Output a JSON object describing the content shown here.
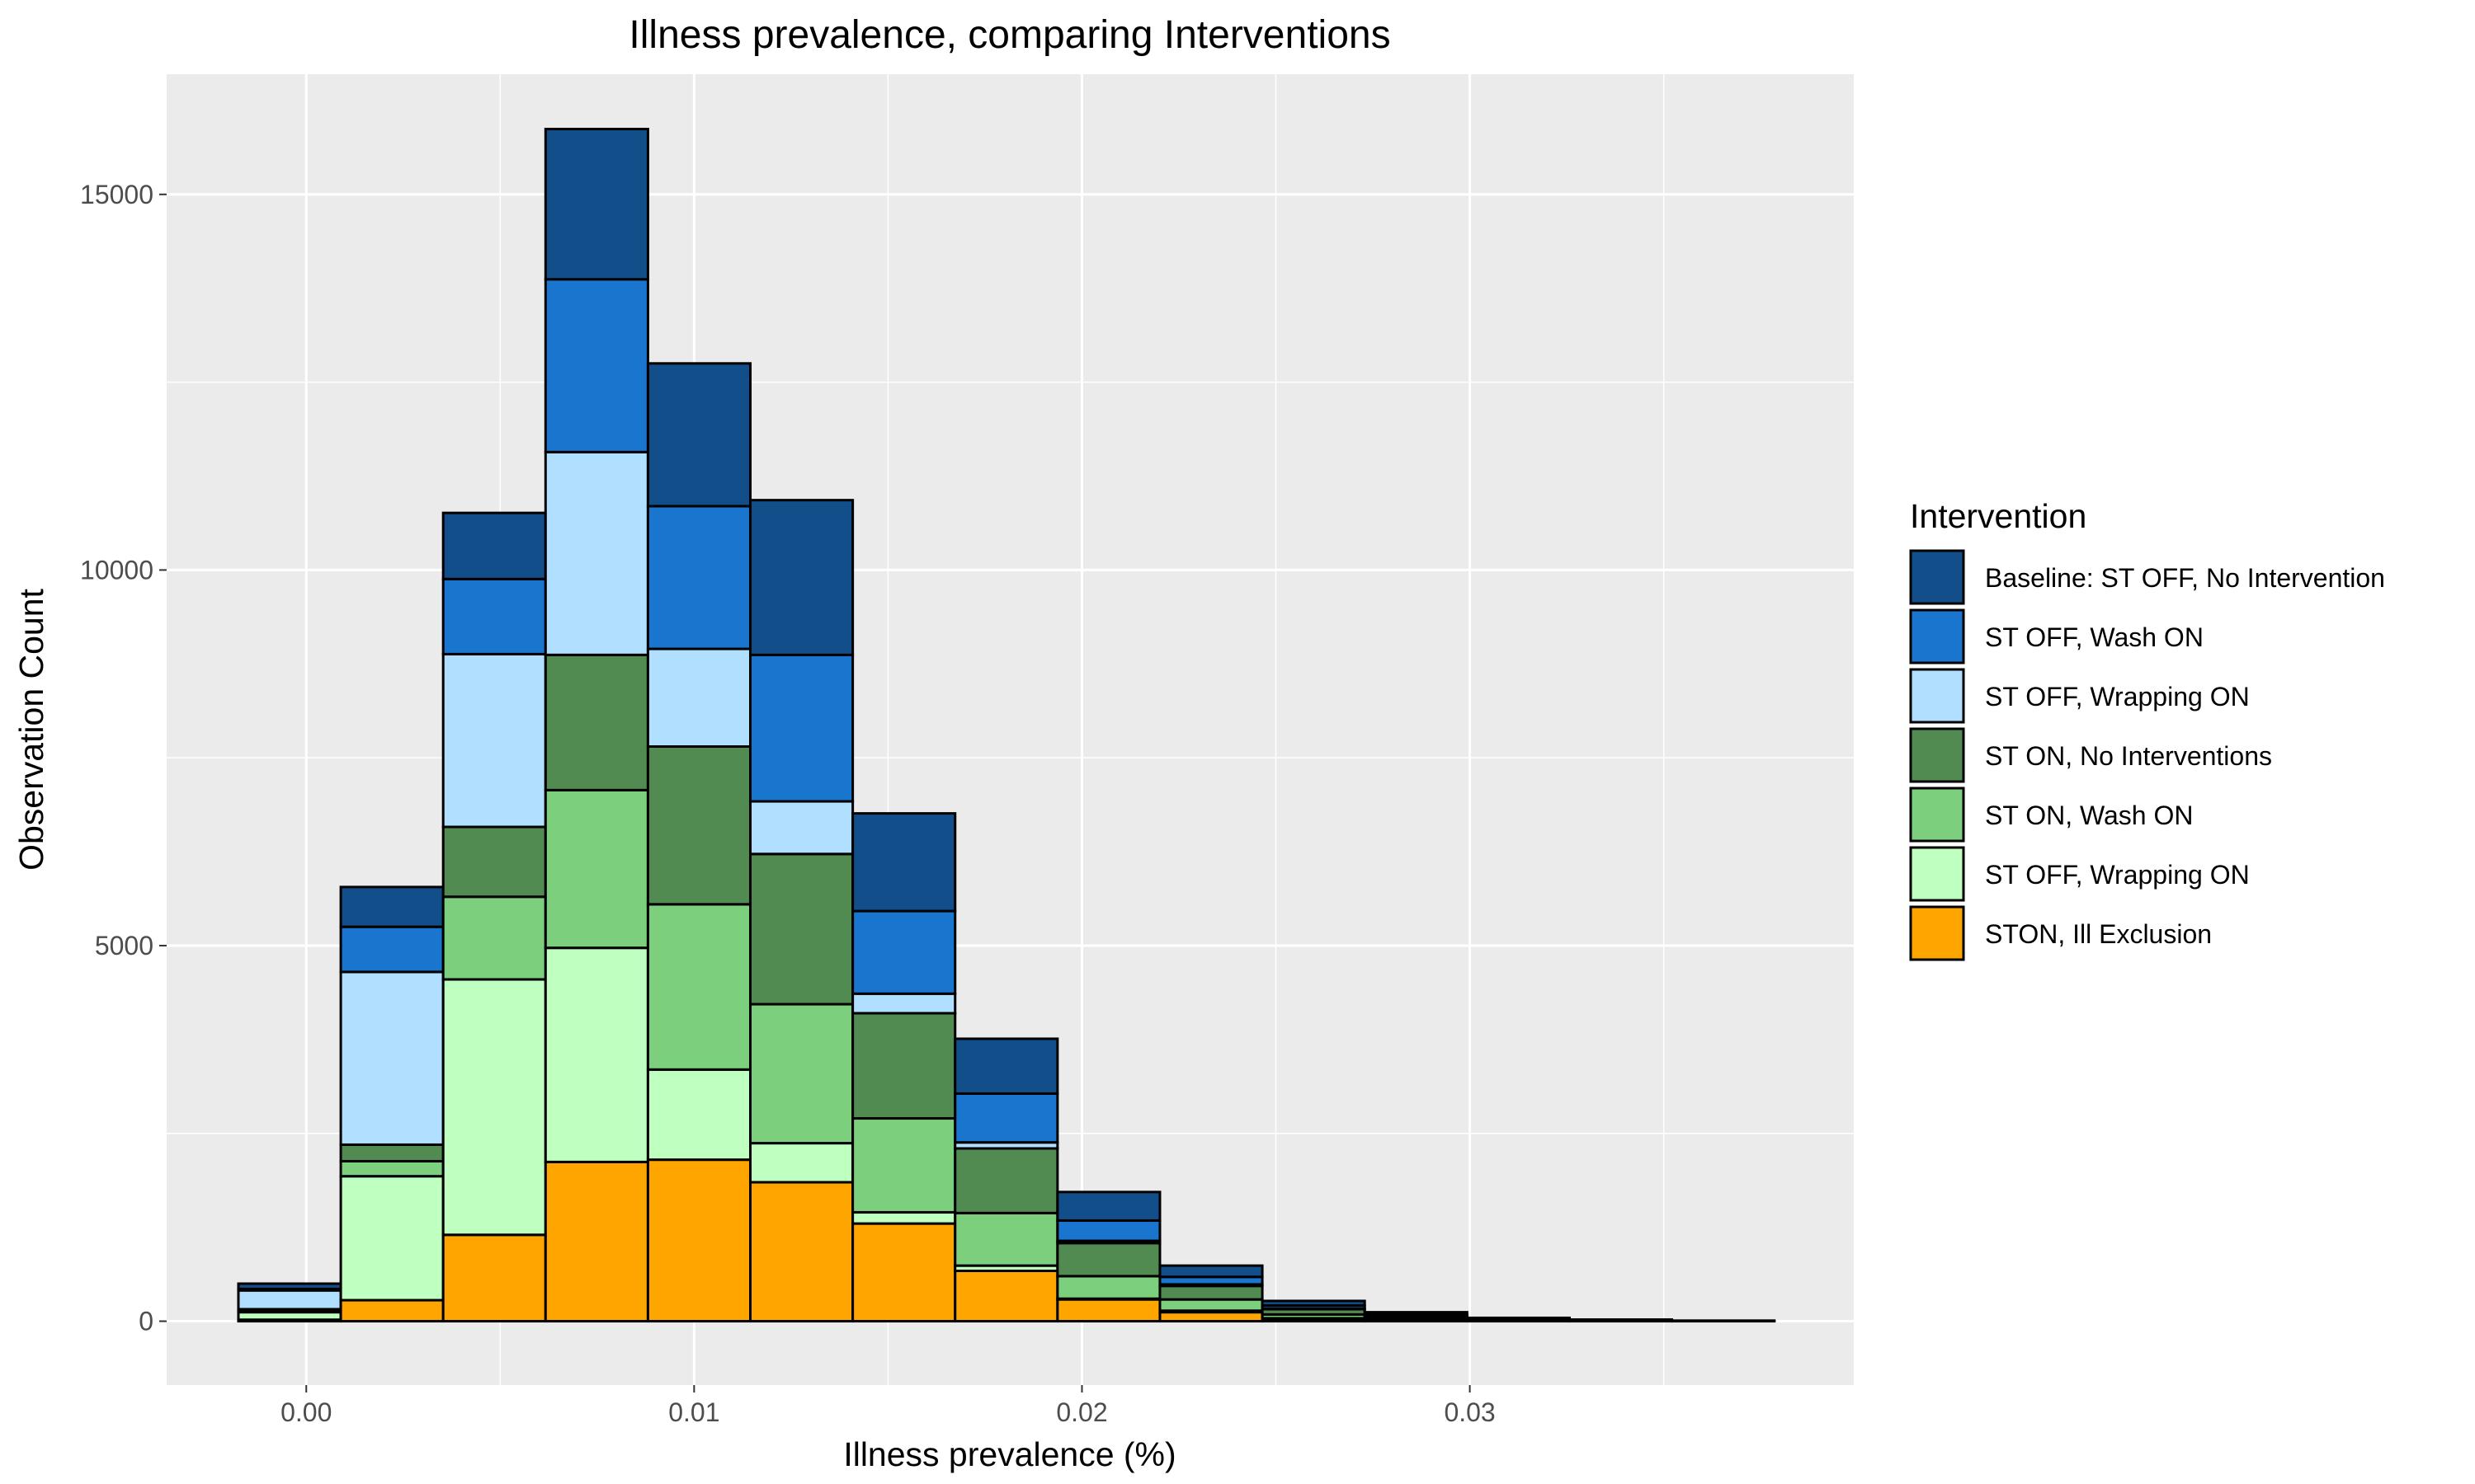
{
  "chart_data": {
    "type": "bar",
    "subtype": "stacked-histogram",
    "title": "Illness prevalence, comparing Interventions",
    "xlabel": "Illness prevalence (%)",
    "ylabel": "Observation Count",
    "xlim": [
      -0.0036,
      0.0399
    ],
    "ylim": [
      -850,
      16600
    ],
    "xticks": [
      0.0,
      0.01,
      0.02,
      0.03
    ],
    "xtick_labels": [
      "0.00",
      "0.01",
      "0.02",
      "0.03"
    ],
    "yticks": [
      0,
      5000,
      10000,
      15000
    ],
    "ytick_labels": [
      "0",
      "5000",
      "10000",
      "15000"
    ],
    "grid": true,
    "legend_title": "Intervention",
    "legend_position": "right",
    "bins": [
      [
        -0.00175,
        0.00089
      ],
      [
        0.00089,
        0.00353
      ],
      [
        0.00353,
        0.00617
      ],
      [
        0.00617,
        0.00881
      ],
      [
        0.00881,
        0.01145
      ],
      [
        0.01145,
        0.01409
      ],
      [
        0.01409,
        0.01673
      ],
      [
        0.01673,
        0.01937
      ],
      [
        0.01937,
        0.02201
      ],
      [
        0.02201,
        0.02465
      ],
      [
        0.02465,
        0.02729
      ],
      [
        0.02729,
        0.02993
      ],
      [
        0.02993,
        0.03257
      ],
      [
        0.03257,
        0.03521
      ],
      [
        0.03521,
        0.03785
      ]
    ],
    "series": [
      {
        "name": "Baseline: ST OFF, No Intervention",
        "color": "#124E8A",
        "values": [
          70,
          530,
          880,
          2000,
          1900,
          2060,
          1300,
          730,
          380,
          150,
          60,
          30,
          10,
          5,
          2
        ]
      },
      {
        "name": "ST OFF, Wash ON",
        "color": "#1A75CF",
        "values": [
          20,
          600,
          1000,
          2300,
          1900,
          1950,
          1100,
          650,
          270,
          100,
          40,
          20,
          8,
          4,
          2
        ]
      },
      {
        "name": "ST OFF, Wrapping ON",
        "color": "#B1DFFF",
        "values": [
          250,
          2300,
          2300,
          2700,
          1300,
          700,
          260,
          80,
          30,
          20,
          10,
          5,
          2,
          1,
          0
        ]
      },
      {
        "name": "ST ON, No Interventions",
        "color": "#518B52",
        "values": [
          20,
          220,
          930,
          1800,
          2100,
          2000,
          1400,
          860,
          440,
          180,
          70,
          25,
          10,
          5,
          2
        ]
      },
      {
        "name": "ST ON, Wash ON",
        "color": "#7CCF7C",
        "values": [
          20,
          200,
          1100,
          2100,
          2200,
          1850,
          1250,
          700,
          300,
          150,
          50,
          20,
          8,
          4,
          1
        ]
      },
      {
        "name": "ST OFF, Wrapping ON",
        "color": "#BFFFBF",
        "values": [
          100,
          1650,
          3400,
          2850,
          1200,
          520,
          150,
          70,
          10,
          20,
          10,
          5,
          2,
          1,
          0
        ]
      },
      {
        "name": "STON, Ill Exclusion",
        "color": "#FFA500",
        "values": [
          20,
          280,
          1150,
          2120,
          2150,
          1850,
          1300,
          670,
          290,
          120,
          30,
          15,
          5,
          2,
          1
        ]
      }
    ]
  }
}
